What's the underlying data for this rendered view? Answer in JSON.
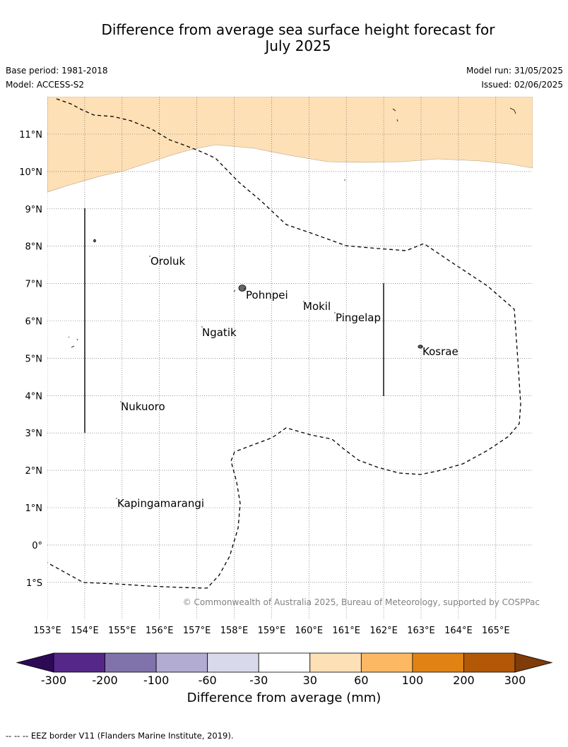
{
  "title": "Difference from average sea surface height forecast for\nJuly 2025",
  "base_period": "Base period: 1981-2018",
  "model": "Model: ACCESS-S2",
  "model_run": "Model run: 31/05/2025",
  "issued": "Issued: 02/06/2025",
  "copyright": "© Commonwealth of Australia 2025, Bureau of Meteorology, supported by COSPPac",
  "lon_labels": [
    "153°E",
    "154°E",
    "155°E",
    "156°E",
    "157°E",
    "158°E",
    "159°E",
    "160°E",
    "161°E",
    "162°E",
    "163°E",
    "164°E",
    "165°E"
  ],
  "lat_labels": [
    "11°N",
    "10°N",
    "9°N",
    "8°N",
    "7°N",
    "6°N",
    "5°N",
    "4°N",
    "3°N",
    "2°N",
    "1°N",
    "0°",
    "1°S"
  ],
  "places": [
    "Oroluk",
    "Pohnpei",
    "Mokil",
    "Pingelap",
    "Ngatik",
    "Kosrae",
    "Nukuoro",
    "Kapingamarangi"
  ],
  "colorbar": {
    "title": "Difference from average (mm)",
    "tick_labels": [
      "-300",
      "-200",
      "-100",
      "-60",
      "-30",
      "30",
      "60",
      "100",
      "200",
      "300"
    ],
    "colors": [
      "#2d0a55",
      "#542788",
      "#8073ac",
      "#b2abd2",
      "#d8daeb",
      "#ffffff",
      "#fee0b6",
      "#fdb863",
      "#e08214",
      "#b35806",
      "#7f3b08"
    ]
  },
  "footer": "--  --  -- EEZ border V11 (Flanders Marine Institute, 2019)."
}
